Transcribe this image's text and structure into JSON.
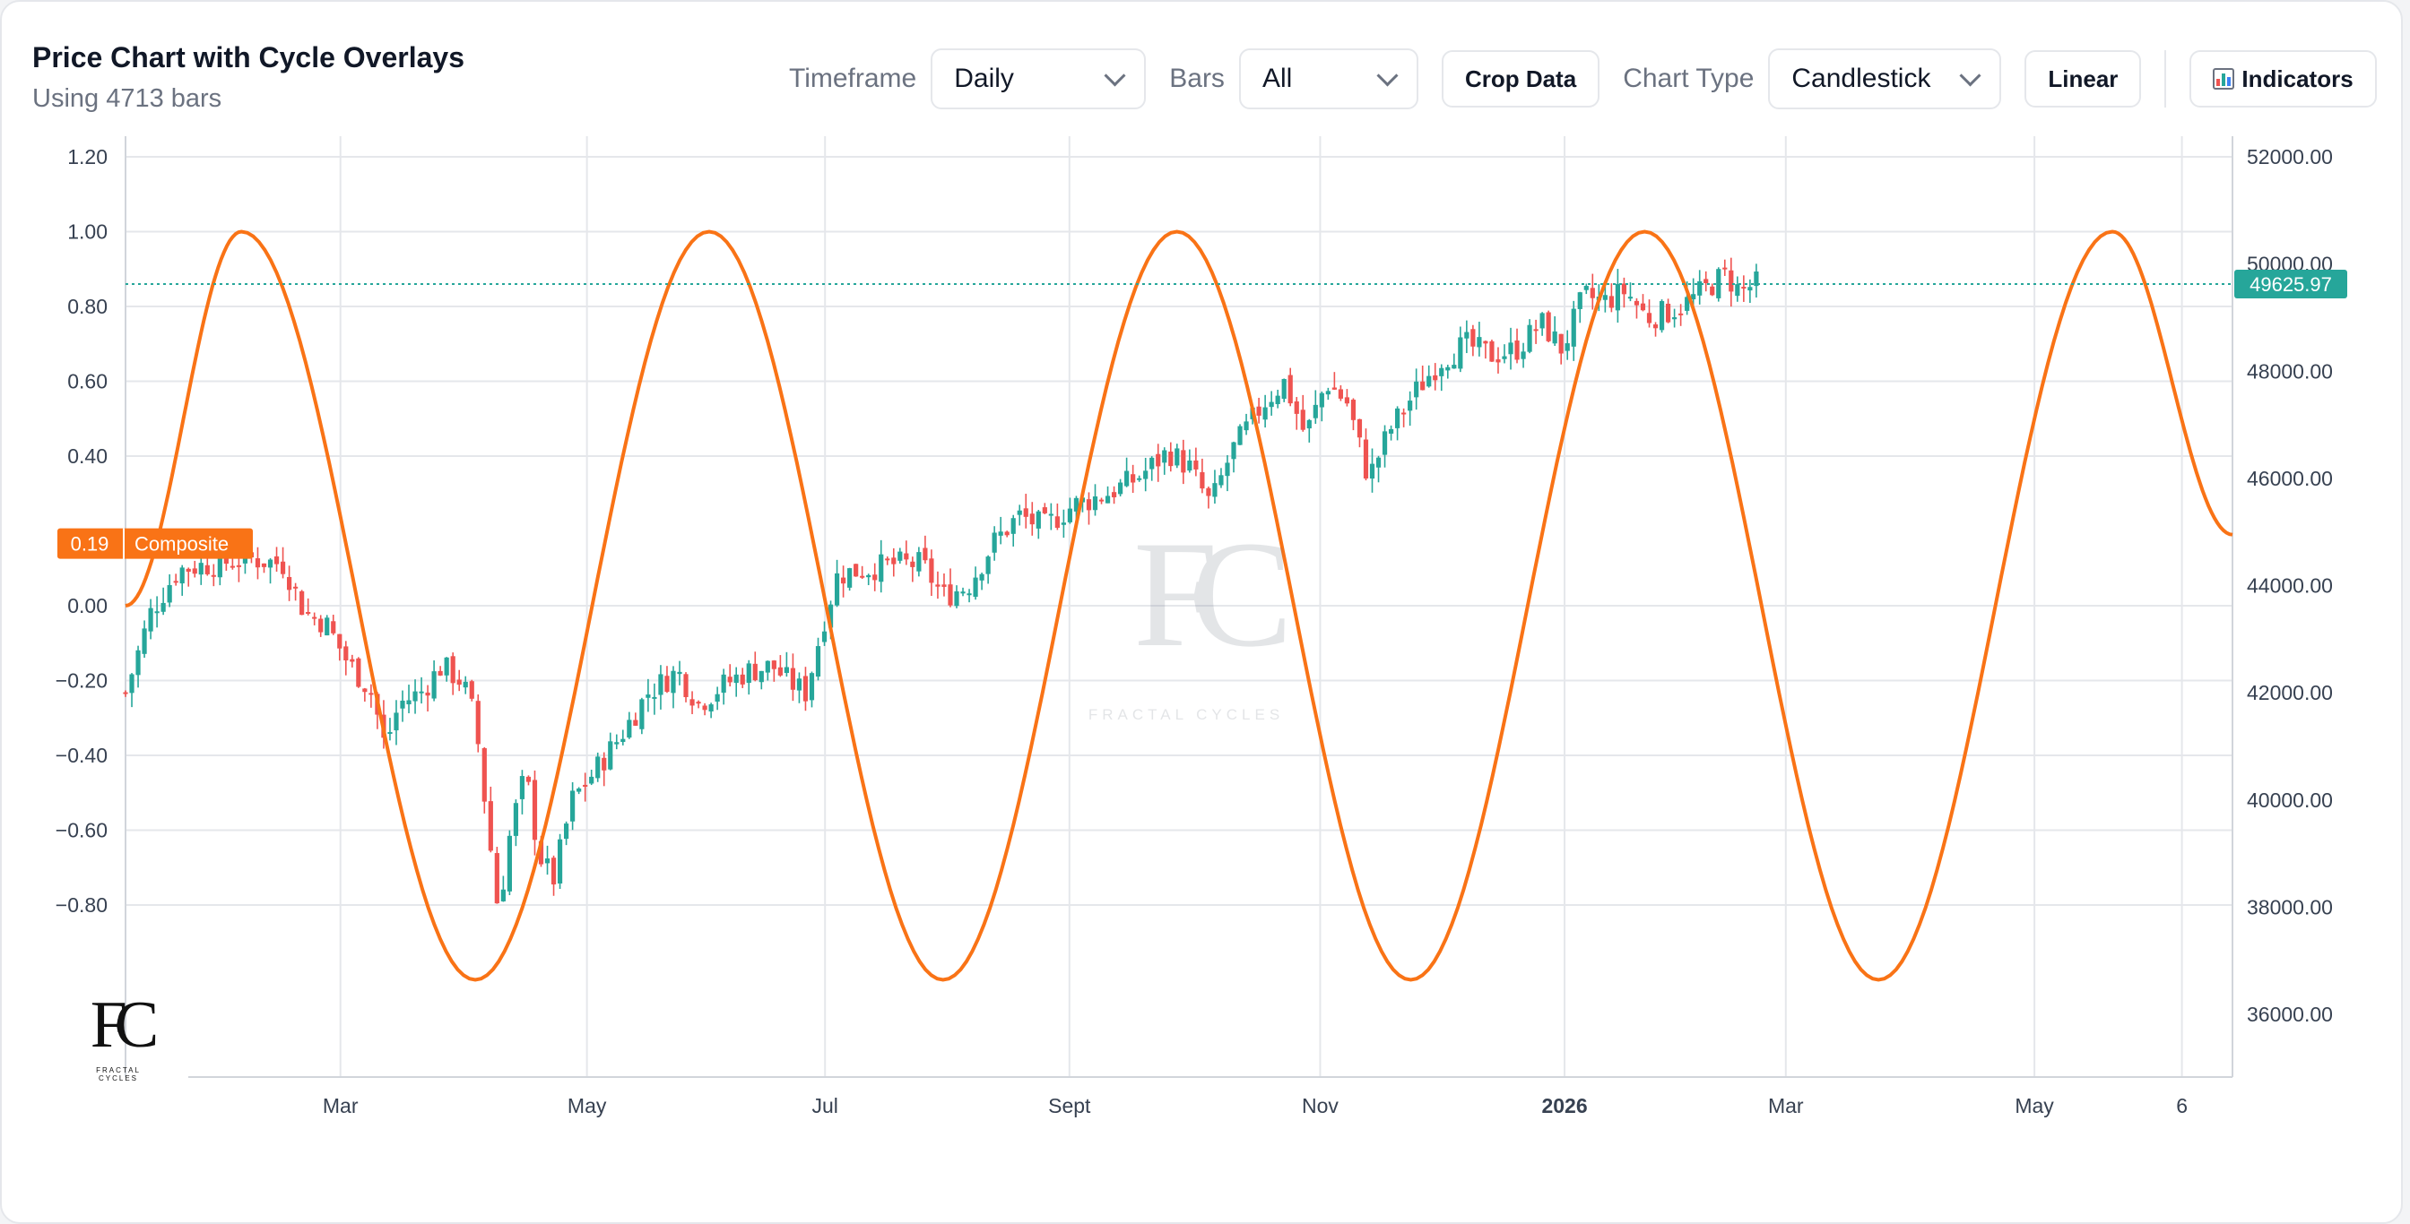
{
  "header": {
    "title": "Price Chart with Cycle Overlays",
    "subtitle": "Using 4713 bars"
  },
  "toolbar": {
    "timeframe_label": "Timeframe",
    "timeframe_value": "Daily",
    "bars_label": "Bars",
    "bars_value": "All",
    "crop_button": "Crop Data",
    "chart_type_label": "Chart Type",
    "chart_type_value": "Candlestick",
    "scale_button": "Linear",
    "indicators_button": "Indicators"
  },
  "logo": {
    "mark": "FC",
    "tagline": "FRACTAL CYCLES"
  },
  "watermark": {
    "mark": "FC",
    "tagline": "FRACTAL CYCLES"
  },
  "colors": {
    "up": "#26a69a",
    "down": "#ef5350",
    "cycle": "#f97316",
    "last_price": "#26a69a",
    "grid": "#e5e7eb"
  },
  "chart_data": {
    "type": "candlestick",
    "grid": true,
    "left_axis": {
      "ticks": [
        "1.20",
        "1.00",
        "0.80",
        "0.60",
        "0.40",
        "0.00",
        "−0.20",
        "−0.40",
        "−0.60",
        "−0.80"
      ],
      "values": [
        1.2,
        1.0,
        0.8,
        0.6,
        0.4,
        0.0,
        -0.2,
        -0.4,
        -0.6,
        -0.8
      ]
    },
    "right_axis": {
      "ticks": [
        "52000.00",
        "50000.00",
        "48000.00",
        "46000.00",
        "44000.00",
        "42000.00",
        "40000.00",
        "38000.00",
        "36000.00"
      ],
      "values": [
        52000,
        50000,
        48000,
        46000,
        44000,
        42000,
        40000,
        38000,
        36000
      ],
      "range": [
        35000,
        52400
      ]
    },
    "x_axis": {
      "labels": [
        {
          "text": "Mar",
          "pos": 0.102,
          "bold": false
        },
        {
          "text": "May",
          "pos": 0.219,
          "bold": false
        },
        {
          "text": "Jul",
          "pos": 0.332,
          "bold": false
        },
        {
          "text": "Sept",
          "pos": 0.448,
          "bold": false
        },
        {
          "text": "Nov",
          "pos": 0.567,
          "bold": false
        },
        {
          "text": "2026",
          "pos": 0.683,
          "bold": true
        },
        {
          "text": "Mar",
          "pos": 0.788,
          "bold": false
        },
        {
          "text": "May",
          "pos": 0.906,
          "bold": false
        },
        {
          "text": "6",
          "pos": 0.976,
          "bold": false
        }
      ]
    },
    "series": [
      {
        "name": "Composite",
        "kind": "line",
        "last_value_label": "0.19",
        "phase_points": [
          {
            "date_pos": 0.055,
            "value": 1.0
          },
          {
            "date_pos": 0.166,
            "value": -1.0
          },
          {
            "date_pos": 0.277,
            "value": 1.0
          },
          {
            "date_pos": 0.388,
            "value": -1.0
          },
          {
            "date_pos": 0.499,
            "value": 1.0
          },
          {
            "date_pos": 0.61,
            "value": -1.0
          },
          {
            "date_pos": 0.721,
            "value": 1.0
          },
          {
            "date_pos": 0.832,
            "value": -1.0
          },
          {
            "date_pos": 0.943,
            "value": 1.0
          }
        ],
        "start_value": 0.0,
        "end_value": 0.19
      },
      {
        "name": "Price",
        "kind": "candlestick",
        "last_price_label": "49625.97",
        "last_price": 49625.97,
        "path": [
          {
            "p": 0.0,
            "v": 42000
          },
          {
            "p": 0.012,
            "v": 43500
          },
          {
            "p": 0.025,
            "v": 44300
          },
          {
            "p": 0.04,
            "v": 44400
          },
          {
            "p": 0.06,
            "v": 44500
          },
          {
            "p": 0.075,
            "v": 44400
          },
          {
            "p": 0.085,
            "v": 43500
          },
          {
            "p": 0.095,
            "v": 43300
          },
          {
            "p": 0.105,
            "v": 42600
          },
          {
            "p": 0.117,
            "v": 42000
          },
          {
            "p": 0.123,
            "v": 41000
          },
          {
            "p": 0.13,
            "v": 41800
          },
          {
            "p": 0.14,
            "v": 42000
          },
          {
            "p": 0.15,
            "v": 42500
          },
          {
            "p": 0.16,
            "v": 42200
          },
          {
            "p": 0.166,
            "v": 41500
          },
          {
            "p": 0.172,
            "v": 39500
          },
          {
            "p": 0.177,
            "v": 37900
          },
          {
            "p": 0.183,
            "v": 39500
          },
          {
            "p": 0.19,
            "v": 40500
          },
          {
            "p": 0.196,
            "v": 39000
          },
          {
            "p": 0.203,
            "v": 38500
          },
          {
            "p": 0.212,
            "v": 40000
          },
          {
            "p": 0.222,
            "v": 40500
          },
          {
            "p": 0.235,
            "v": 41200
          },
          {
            "p": 0.248,
            "v": 42000
          },
          {
            "p": 0.262,
            "v": 42400
          },
          {
            "p": 0.272,
            "v": 41800
          },
          {
            "p": 0.282,
            "v": 42100
          },
          {
            "p": 0.295,
            "v": 42400
          },
          {
            "p": 0.307,
            "v": 42500
          },
          {
            "p": 0.315,
            "v": 42200
          },
          {
            "p": 0.323,
            "v": 42000
          },
          {
            "p": 0.331,
            "v": 43300
          },
          {
            "p": 0.338,
            "v": 44200
          },
          {
            "p": 0.35,
            "v": 44300
          },
          {
            "p": 0.365,
            "v": 44400
          },
          {
            "p": 0.378,
            "v": 44400
          },
          {
            "p": 0.388,
            "v": 43800
          },
          {
            "p": 0.4,
            "v": 44000
          },
          {
            "p": 0.412,
            "v": 44800
          },
          {
            "p": 0.424,
            "v": 45300
          },
          {
            "p": 0.436,
            "v": 45100
          },
          {
            "p": 0.45,
            "v": 45500
          },
          {
            "p": 0.465,
            "v": 45700
          },
          {
            "p": 0.48,
            "v": 46000
          },
          {
            "p": 0.495,
            "v": 46500
          },
          {
            "p": 0.505,
            "v": 46200
          },
          {
            "p": 0.515,
            "v": 45500
          },
          {
            "p": 0.525,
            "v": 46500
          },
          {
            "p": 0.54,
            "v": 47400
          },
          {
            "p": 0.55,
            "v": 47800
          },
          {
            "p": 0.56,
            "v": 46800
          },
          {
            "p": 0.57,
            "v": 47800
          },
          {
            "p": 0.58,
            "v": 47400
          },
          {
            "p": 0.59,
            "v": 46000
          },
          {
            "p": 0.6,
            "v": 46900
          },
          {
            "p": 0.612,
            "v": 47600
          },
          {
            "p": 0.624,
            "v": 48200
          },
          {
            "p": 0.636,
            "v": 48500
          },
          {
            "p": 0.648,
            "v": 48300
          },
          {
            "p": 0.66,
            "v": 48400
          },
          {
            "p": 0.672,
            "v": 48900
          },
          {
            "p": 0.682,
            "v": 48400
          },
          {
            "p": 0.692,
            "v": 49400
          },
          {
            "p": 0.702,
            "v": 49300
          },
          {
            "p": 0.712,
            "v": 49500
          },
          {
            "p": 0.722,
            "v": 49000
          },
          {
            "p": 0.732,
            "v": 49100
          },
          {
            "p": 0.742,
            "v": 49300
          },
          {
            "p": 0.752,
            "v": 49600
          },
          {
            "p": 0.759,
            "v": 49800
          },
          {
            "p": 0.766,
            "v": 49500
          },
          {
            "p": 0.774,
            "v": 49626
          }
        ]
      }
    ],
    "composite_range": [
      -1.12,
      1.2
    ]
  }
}
